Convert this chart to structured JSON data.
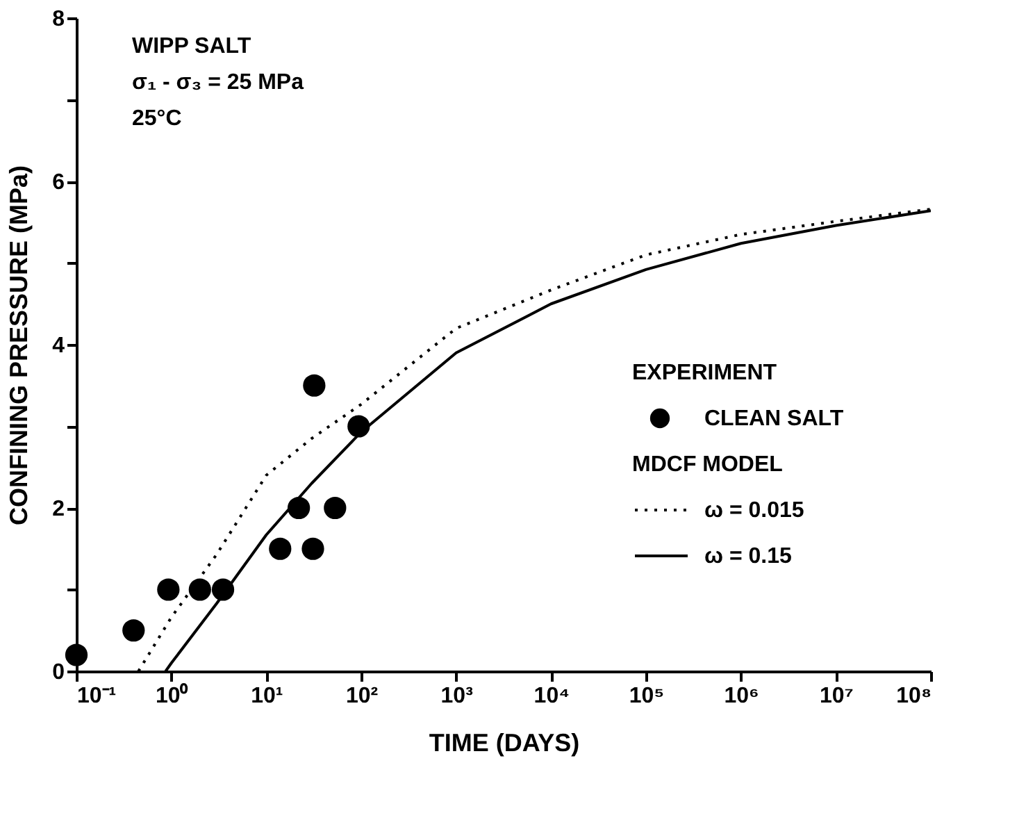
{
  "chart_data": {
    "type": "scatter",
    "xlabel": "TIME (DAYS)",
    "ylabel": "CONFINING PRESSURE (MPa)",
    "log": "x",
    "xlim": [
      0.1,
      100000000
    ],
    "ylim": [
      0,
      8
    ],
    "xticks": [
      {
        "value": 0.1,
        "label": "10⁻¹"
      },
      {
        "value": 1,
        "label": "10⁰"
      },
      {
        "value": 10,
        "label": "10¹"
      },
      {
        "value": 100,
        "label": "10²"
      },
      {
        "value": 1000,
        "label": "10³"
      },
      {
        "value": 10000,
        "label": "10⁴"
      },
      {
        "value": 100000,
        "label": "10⁵"
      },
      {
        "value": 1000000,
        "label": "10⁶"
      },
      {
        "value": 10000000,
        "label": "10⁷"
      },
      {
        "value": 100000000,
        "label": "10⁸"
      }
    ],
    "yticks": [
      0,
      {
        "value": 1,
        "label": null
      },
      2,
      {
        "value": 3,
        "label": null
      },
      4,
      {
        "value": 5,
        "label": null
      },
      6,
      {
        "value": 7,
        "label": null
      },
      8
    ],
    "grid": false,
    "legend": "right",
    "legend_title": "EXPERIMENT",
    "annotations": [
      "WIPP SALT",
      "σ₁ - σ₃ = 25 MPa",
      "25°C",
      "MDCF MODEL"
    ],
    "series": [
      {
        "name": "CLEAN SALT",
        "marker": "circle",
        "color": "#000000",
        "x": [
          0.1,
          0.4,
          0.93,
          2,
          3.5,
          14,
          22,
          32,
          31,
          53,
          94
        ],
        "values": [
          0.2,
          0.5,
          1,
          1,
          1,
          1.5,
          2,
          3.5,
          1.5,
          2,
          3
        ]
      },
      {
        "name": "ω = 0.015",
        "type": "line",
        "line_style": "dotted",
        "color": "#000000",
        "x": [
          0.45,
          1,
          3,
          10,
          30,
          100,
          1000,
          10000,
          100000,
          1000000,
          10000000,
          100000000
        ],
        "values": [
          0,
          0.66,
          1.43,
          2.4,
          2.85,
          3.27,
          4.2,
          4.67,
          5.1,
          5.35,
          5.51,
          5.66
        ]
      },
      {
        "name": "ω = 0.15",
        "type": "line",
        "line_style": "solid",
        "color": "#000000",
        "x": [
          0.87,
          1,
          3,
          10,
          30,
          100,
          1000,
          10000,
          100000,
          1000000,
          10000000,
          100000000
        ],
        "values": [
          0,
          0.1,
          0.83,
          1.67,
          2.3,
          2.93,
          3.9,
          4.5,
          4.92,
          5.24,
          5.46,
          5.64
        ]
      }
    ]
  }
}
